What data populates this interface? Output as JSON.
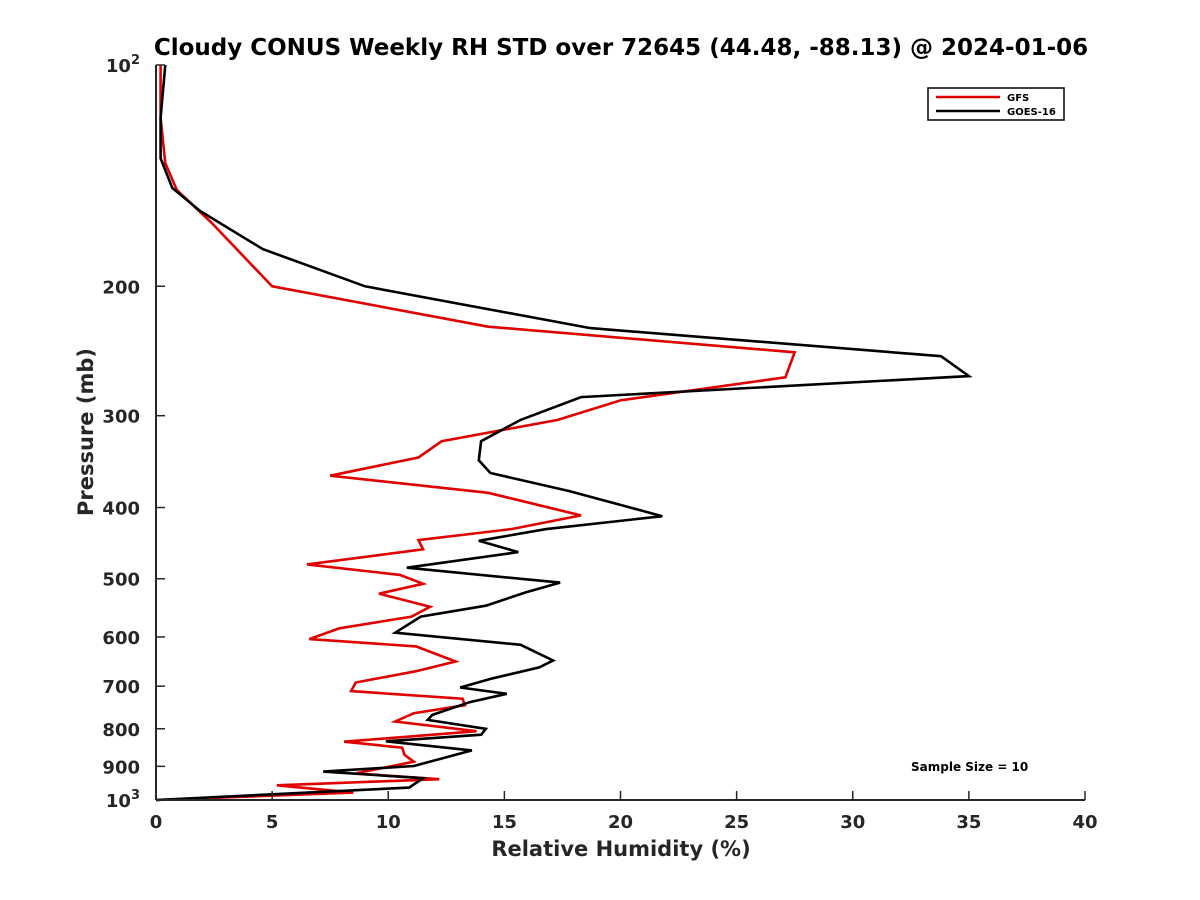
{
  "chart_data": {
    "type": "line",
    "title": "Cloudy CONUS Weekly RH STD over 72645 (44.48, -88.13) @ 2024-01-06",
    "xlabel": "Relative Humidity (%)",
    "ylabel": "Pressure (mb)",
    "xlim": [
      0,
      40
    ],
    "ylim": [
      1000,
      100
    ],
    "y_scale": "log",
    "y_reversed": true,
    "grid": false,
    "legend_position": "top-right",
    "x_ticks": [
      0,
      5,
      10,
      15,
      20,
      25,
      30,
      35,
      40
    ],
    "x_tick_labels": [
      "0",
      "5",
      "10",
      "15",
      "20",
      "25",
      "30",
      "35",
      "40"
    ],
    "y_ticks": [
      100,
      200,
      300,
      400,
      500,
      600,
      700,
      800,
      900,
      1000
    ],
    "y_tick_labels": [
      "10²",
      "200",
      "300",
      "400",
      "500",
      "600",
      "700",
      "800",
      "900",
      "10³"
    ],
    "annotation": "Sample Size = 10",
    "series": [
      {
        "name": "GFS",
        "color": "#e00000",
        "points": [
          [
            0.2,
            100
          ],
          [
            0.2,
            118
          ],
          [
            0.4,
            136
          ],
          [
            0.9,
            148
          ],
          [
            2.4,
            164
          ],
          [
            5.0,
            200
          ],
          [
            14.3,
            227
          ],
          [
            27.5,
            246
          ],
          [
            27.1,
            266
          ],
          [
            20.0,
            286
          ],
          [
            17.3,
            304
          ],
          [
            12.3,
            325
          ],
          [
            11.3,
            342
          ],
          [
            7.5,
            362
          ],
          [
            14.3,
            382
          ],
          [
            18.3,
            410
          ],
          [
            15.3,
            428
          ],
          [
            11.3,
            443
          ],
          [
            11.5,
            456
          ],
          [
            6.5,
            478
          ],
          [
            10.5,
            494
          ],
          [
            11.5,
            508
          ],
          [
            9.6,
            524
          ],
          [
            11.8,
            546
          ],
          [
            11.0,
            563
          ],
          [
            7.9,
            584
          ],
          [
            6.6,
            604
          ],
          [
            11.2,
            618
          ],
          [
            12.9,
            648
          ],
          [
            11.2,
            668
          ],
          [
            8.6,
            692
          ],
          [
            8.4,
            711
          ],
          [
            13.2,
            728
          ],
          [
            13.3,
            743
          ],
          [
            11.1,
            762
          ],
          [
            10.3,
            782
          ],
          [
            13.8,
            806
          ],
          [
            8.1,
            833
          ],
          [
            10.6,
            849
          ],
          [
            10.7,
            868
          ],
          [
            11.1,
            887
          ],
          [
            8.6,
            920
          ],
          [
            12.2,
            937
          ],
          [
            5.2,
            955
          ],
          [
            8.5,
            977
          ],
          [
            0.0,
            1000
          ]
        ]
      },
      {
        "name": "GOES-16",
        "color": "#000000",
        "points": [
          [
            0.4,
            100
          ],
          [
            0.2,
            118
          ],
          [
            0.2,
            134
          ],
          [
            0.7,
            147
          ],
          [
            1.9,
            158
          ],
          [
            4.6,
            178
          ],
          [
            9.0,
            200
          ],
          [
            18.7,
            228
          ],
          [
            33.8,
            249
          ],
          [
            35.0,
            265
          ],
          [
            18.3,
            283
          ],
          [
            15.7,
            304
          ],
          [
            14.0,
            325
          ],
          [
            13.9,
            345
          ],
          [
            14.4,
            359
          ],
          [
            17.8,
            380
          ],
          [
            21.8,
            411
          ],
          [
            16.8,
            428
          ],
          [
            13.9,
            444
          ],
          [
            15.6,
            460
          ],
          [
            10.8,
            483
          ],
          [
            17.4,
            506
          ],
          [
            15.9,
            522
          ],
          [
            14.2,
            544
          ],
          [
            11.4,
            563
          ],
          [
            10.3,
            592
          ],
          [
            15.7,
            615
          ],
          [
            17.1,
            646
          ],
          [
            16.5,
            660
          ],
          [
            14.5,
            683
          ],
          [
            13.1,
            703
          ],
          [
            15.1,
            717
          ],
          [
            13.5,
            736
          ],
          [
            11.9,
            766
          ],
          [
            11.7,
            778
          ],
          [
            14.2,
            800
          ],
          [
            14.0,
            815
          ],
          [
            9.9,
            832
          ],
          [
            13.6,
            856
          ],
          [
            11.1,
            899
          ],
          [
            7.2,
            915
          ],
          [
            11.5,
            934
          ],
          [
            10.9,
            962
          ],
          [
            0.0,
            1000
          ]
        ]
      }
    ]
  }
}
